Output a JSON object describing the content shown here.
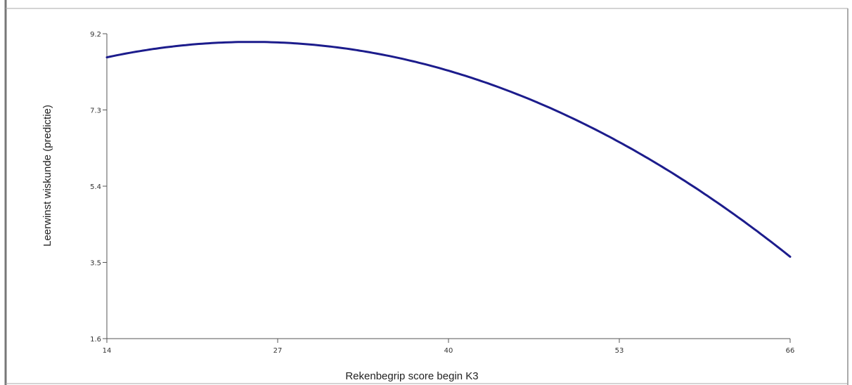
{
  "chart_data": {
    "type": "line",
    "title": "",
    "xlabel": "Rekenbegrip score begin K3",
    "ylabel": "Leerwinst wiskunde (predictie)",
    "xlim": [
      14,
      66
    ],
    "ylim": [
      1.6,
      9.2
    ],
    "x_ticks": [
      "14",
      "27",
      "40",
      "53",
      "66"
    ],
    "y_ticks": [
      "9.2",
      "7.3",
      "5.4",
      "3.5",
      "1.6"
    ],
    "grid": false,
    "legend": "none",
    "series": [
      {
        "color": "#1c1c8c",
        "x": [
          14,
          17,
          20,
          23,
          26,
          29,
          32,
          35,
          38,
          41,
          44,
          47,
          50,
          53,
          56,
          59,
          62,
          65
        ],
        "y": [
          8.6,
          8.79,
          8.92,
          8.99,
          9.0,
          8.95,
          8.84,
          8.68,
          8.46,
          8.18,
          7.84,
          7.45,
          7.0,
          6.49,
          5.93,
          5.31,
          4.64,
          3.91
        ]
      }
    ]
  }
}
